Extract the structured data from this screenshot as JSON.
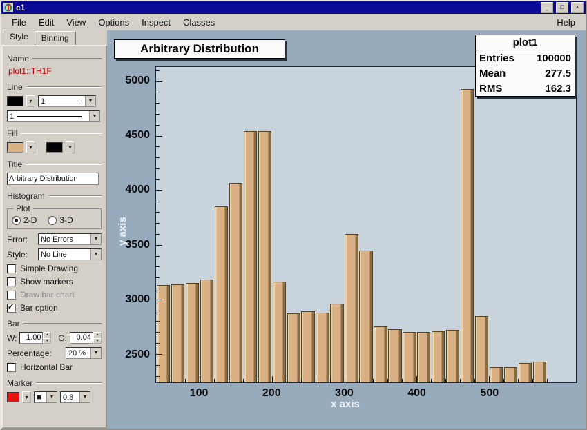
{
  "window": {
    "title": "c1",
    "controls": {
      "minimize": "_",
      "maximize": "□",
      "close": "×"
    }
  },
  "menu": {
    "items": [
      "File",
      "Edit",
      "View",
      "Options",
      "Inspect",
      "Classes"
    ],
    "help": "Help"
  },
  "editor": {
    "tabs": [
      "Style",
      "Binning"
    ],
    "active_tab": "Style",
    "name_label": "Name",
    "object_name": "plot1::TH1F",
    "line_label": "Line",
    "line_style": "1",
    "line_width": "1",
    "fill_label": "Fill",
    "title_label": "Title",
    "title_value": "Arbitrary Distribution",
    "histogram_label": "Histogram",
    "plot_group": {
      "label": "Plot",
      "options": [
        "2-D",
        "3-D"
      ],
      "selected": "2-D"
    },
    "error_label": "Error:",
    "error_value": "No Errors",
    "style_label": "Style:",
    "style_value": "No Line",
    "checkboxes": [
      {
        "label": "Simple Drawing",
        "checked": false,
        "disabled": false
      },
      {
        "label": "Show markers",
        "checked": false,
        "disabled": false
      },
      {
        "label": "Draw bar chart",
        "checked": false,
        "disabled": true
      },
      {
        "label": "Bar option",
        "checked": true,
        "disabled": false
      }
    ],
    "bar_label": "Bar",
    "bar_w_label": "W:",
    "bar_w_value": "1.00",
    "bar_o_label": "O:",
    "bar_o_value": "0.04",
    "percentage_label": "Percentage:",
    "percentage_value": "20 %",
    "horizontal_bar_label": "Horizontal Bar",
    "marker_label": "Marker",
    "marker_style_glyph": "■",
    "marker_size": "0.8",
    "colors": {
      "line": "#000000",
      "fill": "#d9b184",
      "fill_pattern": "#000000",
      "marker": "#ee1111"
    }
  },
  "chart_data": {
    "type": "bar",
    "title": "Arbitrary Distribution",
    "xlabel": "x axis",
    "ylabel": "y axis",
    "x_start": 40,
    "bin_width": 20,
    "values": [
      3130,
      3140,
      3150,
      3185,
      3855,
      4065,
      4540,
      4540,
      3165,
      2870,
      2890,
      2880,
      2960,
      3600,
      3450,
      2750,
      2730,
      2700,
      2700,
      2710,
      2720,
      4930,
      2845,
      2380,
      2380,
      2420,
      2430
    ],
    "xlim": [
      40,
      620
    ],
    "ylim": [
      2240,
      5130
    ],
    "x_ticks": [
      100,
      200,
      300,
      400,
      500
    ],
    "y_ticks": [
      2500,
      3000,
      3500,
      4000,
      4500,
      5000
    ],
    "grid": false,
    "bar_color": "#d9b184",
    "stats_box": {
      "title": "plot1",
      "rows": [
        {
          "label": "Entries",
          "value": "100000"
        },
        {
          "label": "Mean",
          "value": "277.5"
        },
        {
          "label": "RMS",
          "value": "162.3"
        }
      ]
    }
  }
}
